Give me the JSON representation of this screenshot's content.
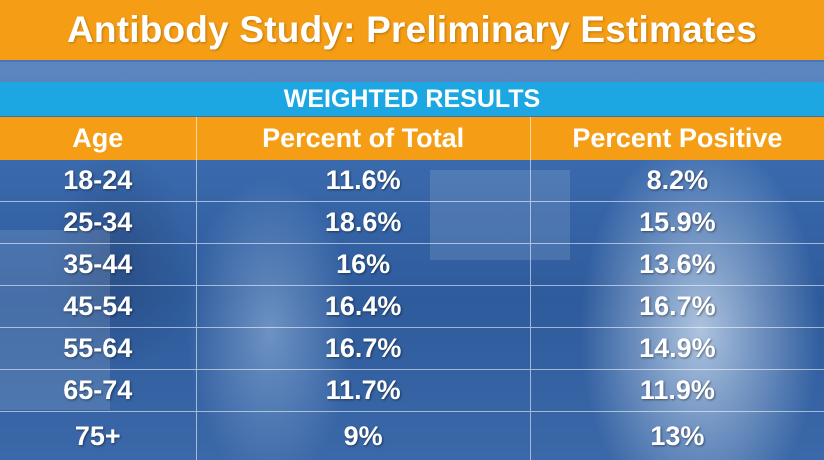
{
  "title": "Antibody Study: Preliminary Estimates",
  "subtitle": "WEIGHTED RESULTS",
  "columns": [
    "Age",
    "Percent of Total",
    "Percent Positive"
  ],
  "rows": [
    {
      "age": "18-24",
      "percent_of_total": "11.6%",
      "percent_positive": "8.2%"
    },
    {
      "age": "25-34",
      "percent_of_total": "18.6%",
      "percent_positive": "15.9%"
    },
    {
      "age": "35-44",
      "percent_of_total": "16%",
      "percent_positive": "13.6%"
    },
    {
      "age": "45-54",
      "percent_of_total": "16.4%",
      "percent_positive": "16.7%"
    },
    {
      "age": "55-64",
      "percent_of_total": "16.7%",
      "percent_positive": "14.9%"
    },
    {
      "age": "65-74",
      "percent_of_total": "11.7%",
      "percent_positive": "11.9%"
    },
    {
      "age": "75+",
      "percent_of_total": "9%",
      "percent_positive": "13%"
    }
  ],
  "colors": {
    "title_bar": "#f59d14",
    "subtitle_bar": "#1ca7e3",
    "header_row": "#f59d14",
    "background": "#2f5fa0",
    "text": "#ffffff"
  }
}
